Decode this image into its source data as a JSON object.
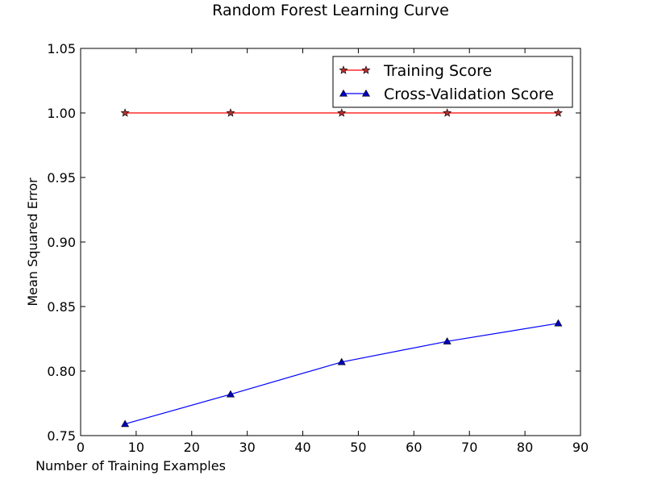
{
  "chart_data": {
    "type": "line",
    "title": "Random Forest Learning Curve",
    "xlabel": "Number of Training Examples",
    "ylabel": "Mean Squared Error",
    "xlim": [
      0,
      90
    ],
    "ylim": [
      0.75,
      1.05
    ],
    "xticks": [
      "0",
      "10",
      "20",
      "30",
      "40",
      "50",
      "60",
      "70",
      "80",
      "90"
    ],
    "yticks": [
      "0.75",
      "0.80",
      "0.85",
      "0.90",
      "0.95",
      "1.00",
      "1.05"
    ],
    "grid": false,
    "legend_position": "top-right",
    "x": [
      8,
      27,
      47,
      66,
      86
    ],
    "series": [
      {
        "name": "Training Score",
        "values": [
          1.0,
          1.0,
          1.0,
          1.0,
          1.0
        ],
        "color": "#ff0000",
        "marker_fill": "#b03030",
        "marker": "star"
      },
      {
        "name": "Cross-Validation Score",
        "values": [
          0.759,
          0.782,
          0.807,
          0.823,
          0.837
        ],
        "color": "#0000ff",
        "marker_fill": "#0000bb",
        "marker": "triangle"
      }
    ]
  }
}
